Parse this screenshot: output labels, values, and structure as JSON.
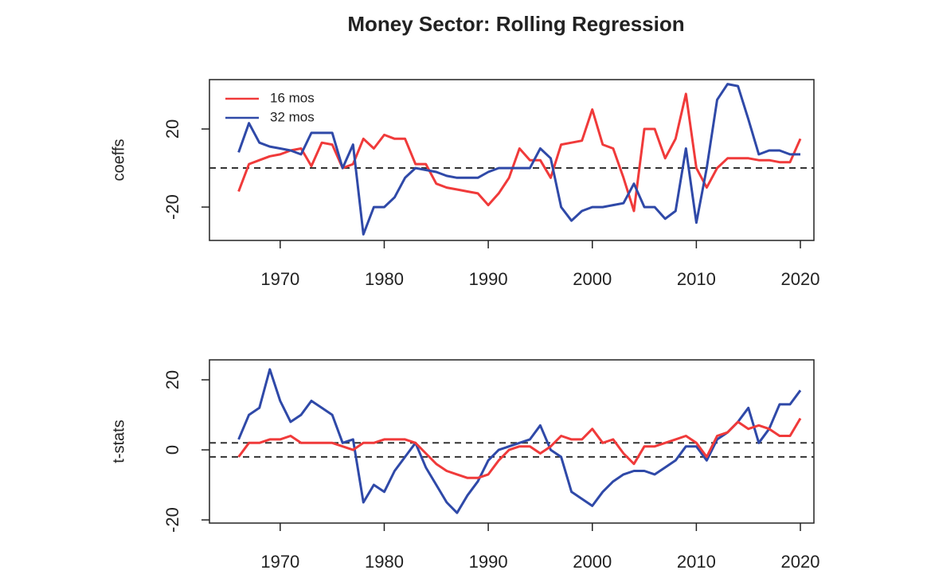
{
  "title": "Money Sector: Rolling Regression",
  "chart_data": [
    {
      "type": "line",
      "ylabel": "coeffs",
      "legend": "top-left",
      "x": [
        1966,
        1967,
        1968,
        1969,
        1970,
        1971,
        1972,
        1973,
        1974,
        1975,
        1976,
        1977,
        1978,
        1979,
        1980,
        1981,
        1982,
        1983,
        1984,
        1985,
        1986,
        1987,
        1988,
        1989,
        1990,
        1991,
        1992,
        1993,
        1994,
        1995,
        1996,
        1997,
        1998,
        1999,
        2000,
        2001,
        2002,
        2003,
        2004,
        2005,
        2006,
        2007,
        2008,
        2009,
        2010,
        2011,
        2012,
        2013,
        2014,
        2015,
        2016,
        2017,
        2018,
        2019,
        2020
      ],
      "series": [
        {
          "name": "16 mos",
          "color": "#f03a3a",
          "values": [
            -12,
            2,
            4,
            6,
            7,
            9,
            10,
            1,
            13,
            12,
            0,
            2,
            15,
            10,
            17,
            15,
            15,
            2,
            2,
            -8,
            -10,
            -11,
            -12,
            -13,
            -19,
            -13,
            -5,
            10,
            4,
            4,
            -5,
            12,
            13,
            14,
            30,
            12,
            10,
            -5,
            -22,
            20,
            20,
            5,
            15,
            38,
            0,
            -10,
            0,
            5,
            5,
            5,
            4,
            4,
            3,
            3,
            15
          ]
        },
        {
          "name": "32 mos",
          "color": "#2f49a8",
          "values": [
            8,
            23,
            13,
            11,
            10,
            9,
            7,
            18,
            18,
            18,
            0,
            12,
            -34,
            -20,
            -20,
            -15,
            -5,
            0,
            -1,
            -2,
            -4,
            -5,
            -5,
            -5,
            -2,
            0,
            0,
            0,
            0,
            10,
            5,
            -20,
            -27,
            -22,
            -20,
            -20,
            -19,
            -18,
            -8,
            -20,
            -20,
            -26,
            -22,
            10,
            -28,
            0,
            35,
            43,
            42,
            25,
            7,
            9,
            9,
            7,
            7
          ]
        }
      ],
      "xlim": [
        1963.2,
        2021.3
      ],
      "xticks": [
        1970,
        1980,
        1990,
        2000,
        2010,
        2020
      ],
      "ylim": [
        -37.1,
        45.3
      ],
      "yticks": [
        -20,
        20
      ],
      "hlines": [
        0
      ]
    },
    {
      "type": "line",
      "ylabel": "t-stats",
      "x": [
        1966,
        1967,
        1968,
        1969,
        1970,
        1971,
        1972,
        1973,
        1974,
        1975,
        1976,
        1977,
        1978,
        1979,
        1980,
        1981,
        1982,
        1983,
        1984,
        1985,
        1986,
        1987,
        1988,
        1989,
        1990,
        1991,
        1992,
        1993,
        1994,
        1995,
        1996,
        1997,
        1998,
        1999,
        2000,
        2001,
        2002,
        2003,
        2004,
        2005,
        2006,
        2007,
        2008,
        2009,
        2010,
        2011,
        2012,
        2013,
        2014,
        2015,
        2016,
        2017,
        2018,
        2019,
        2020
      ],
      "series": [
        {
          "color": "#2f49a8",
          "values": [
            3,
            10,
            12,
            23,
            14,
            8,
            10,
            14,
            12,
            10,
            2,
            3,
            -15,
            -10,
            -12,
            -6,
            -2,
            2,
            -5,
            -10,
            -15,
            -18,
            -13,
            -9,
            -3,
            0,
            1,
            2,
            3,
            7,
            0,
            -2,
            -12,
            -14,
            -16,
            -12,
            -9,
            -7,
            -6,
            -6,
            -7,
            -5,
            -3,
            1,
            1,
            -3,
            3,
            5,
            8,
            12,
            2,
            6,
            13,
            13,
            17
          ]
        },
        {
          "color": "#f03a3a",
          "values": [
            -2,
            2,
            2,
            3,
            3,
            4,
            2,
            2,
            2,
            2,
            1,
            0,
            2,
            2,
            3,
            3,
            3,
            2,
            -1,
            -4,
            -6,
            -7,
            -8,
            -8,
            -7,
            -3,
            0,
            1,
            1,
            -1,
            1,
            4,
            3,
            3,
            6,
            2,
            3,
            -1,
            -4,
            1,
            1,
            2,
            3,
            4,
            2,
            -2,
            4,
            5,
            8,
            6,
            7,
            6,
            4,
            4,
            9
          ]
        }
      ],
      "xlim": [
        1963.2,
        2021.3
      ],
      "xticks": [
        1970,
        1980,
        1990,
        2000,
        2010,
        2020
      ],
      "ylim": [
        -20.9,
        25.7
      ],
      "yticks": [
        -20,
        0,
        20
      ],
      "hlines": [
        2,
        -2
      ]
    }
  ]
}
